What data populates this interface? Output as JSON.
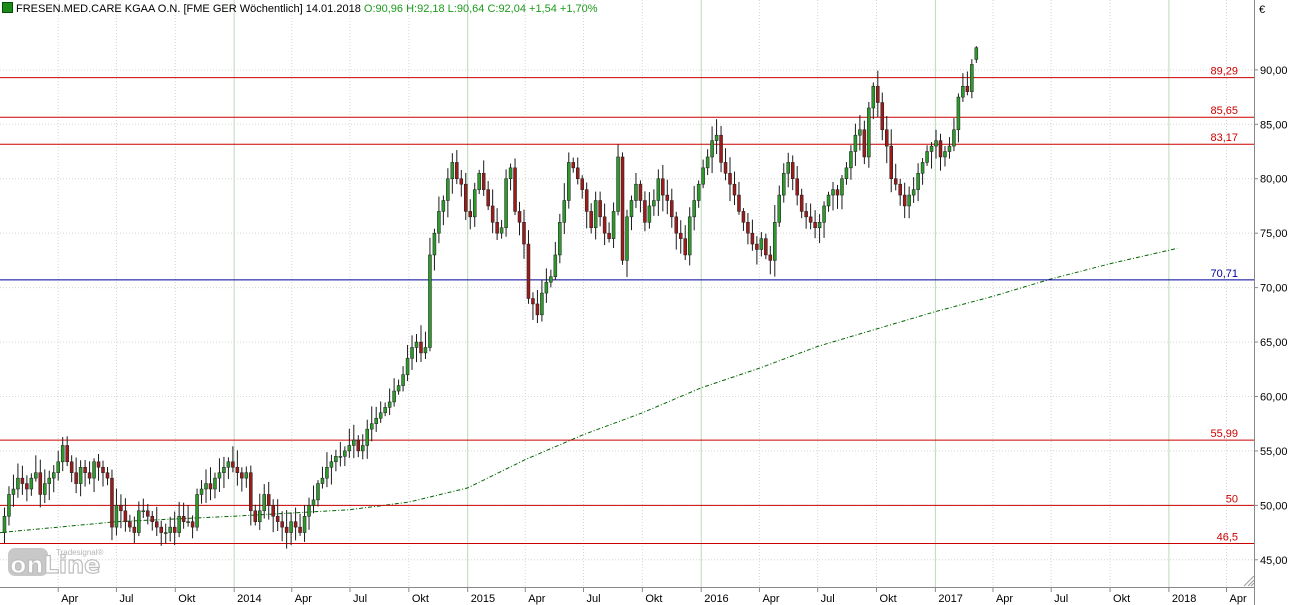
{
  "header": {
    "name": "FRESEN.MED.CARE KGAA O.N.",
    "symbol": "[FME GER",
    "interval": "Wöchentlich]",
    "date": "14.01.2018",
    "ohlc": "O:90,96 H:92,18 L:90,64",
    "close_change": "C:92,04 +1,54 +1,70%"
  },
  "currency": "€",
  "logo": {
    "small": "Tradesignal®",
    "word": "onLine"
  },
  "colors": {
    "up_candle": "#2e9a2e",
    "down_candle": "#9b1c1c",
    "resistance": "#cc0000",
    "support": "#000099",
    "moving_average": "#006600",
    "grid": "#d6d6d6",
    "year_grid": "#bcd9bc"
  },
  "chart_data": {
    "type": "candlestick",
    "title": "FRESEN.MED.CARE KGAA O.N.",
    "interval": "weekly",
    "ylim": [
      42.5,
      95.5
    ],
    "y_ticks": [
      "45,00",
      "50,00",
      "55,00",
      "60,00",
      "65,00",
      "70,00",
      "75,00",
      "80,00",
      "85,00",
      "90,00"
    ],
    "x_range": [
      "2012-12-31",
      "2018-05-14"
    ],
    "x_labels": [
      {
        "date": "2013-04-01",
        "label": "Apr"
      },
      {
        "date": "2013-07-01",
        "label": "Jul"
      },
      {
        "date": "2013-10-01",
        "label": "Okt"
      },
      {
        "date": "2014-01-01",
        "label": "2014"
      },
      {
        "date": "2014-04-01",
        "label": "Apr"
      },
      {
        "date": "2014-07-01",
        "label": "Jul"
      },
      {
        "date": "2014-10-01",
        "label": "Okt"
      },
      {
        "date": "2015-01-01",
        "label": "2015"
      },
      {
        "date": "2015-04-01",
        "label": "Apr"
      },
      {
        "date": "2015-07-01",
        "label": "Jul"
      },
      {
        "date": "2015-10-01",
        "label": "Okt"
      },
      {
        "date": "2016-01-01",
        "label": "2016"
      },
      {
        "date": "2016-04-01",
        "label": "Apr"
      },
      {
        "date": "2016-07-01",
        "label": "Jul"
      },
      {
        "date": "2016-10-01",
        "label": "Okt"
      },
      {
        "date": "2017-01-01",
        "label": "2017"
      },
      {
        "date": "2017-04-01",
        "label": "Apr"
      },
      {
        "date": "2017-07-01",
        "label": "Jul"
      },
      {
        "date": "2017-10-01",
        "label": "Okt"
      },
      {
        "date": "2018-01-01",
        "label": "2018"
      },
      {
        "date": "2018-04-01",
        "label": "Apr"
      }
    ],
    "horizontal_lines": [
      {
        "value": 89.29,
        "label": "89,29",
        "kind": "resistance"
      },
      {
        "value": 85.65,
        "label": "85,65",
        "kind": "resistance"
      },
      {
        "value": 83.17,
        "label": "83,17",
        "kind": "resistance"
      },
      {
        "value": 70.71,
        "label": "70,71",
        "kind": "support"
      },
      {
        "value": 55.99,
        "label": "55,99",
        "kind": "resistance"
      },
      {
        "value": 50,
        "label": "50",
        "kind": "resistance"
      },
      {
        "value": 46.5,
        "label": "46,5",
        "kind": "resistance"
      }
    ],
    "moving_average": [
      {
        "date": "2012-12-31",
        "value": 47.5
      },
      {
        "date": "2013-07-01",
        "value": 48.5
      },
      {
        "date": "2014-01-01",
        "value": 49.0
      },
      {
        "date": "2014-07-01",
        "value": 49.6
      },
      {
        "date": "2014-10-01",
        "value": 50.3
      },
      {
        "date": "2015-01-01",
        "value": 51.6
      },
      {
        "date": "2015-04-01",
        "value": 54.2
      },
      {
        "date": "2015-07-01",
        "value": 56.5
      },
      {
        "date": "2015-10-01",
        "value": 58.5
      },
      {
        "date": "2016-01-01",
        "value": 60.8
      },
      {
        "date": "2016-04-01",
        "value": 62.6
      },
      {
        "date": "2016-07-01",
        "value": 64.6
      },
      {
        "date": "2016-10-01",
        "value": 66.2
      },
      {
        "date": "2017-01-01",
        "value": 67.8
      },
      {
        "date": "2017-04-01",
        "value": 69.2
      },
      {
        "date": "2017-07-01",
        "value": 70.8
      },
      {
        "date": "2017-10-01",
        "value": 72.2
      },
      {
        "date": "2018-01-14",
        "value": 73.6
      }
    ],
    "closes": [
      49.0,
      51.0,
      51.5,
      52.5,
      52.0,
      51.5,
      52.5,
      53.0,
      51.0,
      52.0,
      52.5,
      53.0,
      54.0,
      55.5,
      54.0,
      53.0,
      52.0,
      53.5,
      53.0,
      52.5,
      54.0,
      53.5,
      53.0,
      52.5,
      48.0,
      50.0,
      49.5,
      48.5,
      48.0,
      47.5,
      49.5,
      49.5,
      49.0,
      48.5,
      48.0,
      47.5,
      47.5,
      48.0,
      47.5,
      49.0,
      48.5,
      48.5,
      48.0,
      51.0,
      51.5,
      52.0,
      51.5,
      52.5,
      53.0,
      53.5,
      54.0,
      53.5,
      53.0,
      52.5,
      53.0,
      49.5,
      48.5,
      49.5,
      51.0,
      50.0,
      49.0,
      48.5,
      48.0,
      47.5,
      48.5,
      48.0,
      47.5,
      49.0,
      50.0,
      50.5,
      52.0,
      52.5,
      53.5,
      54.0,
      54.5,
      54.5,
      55.0,
      55.5,
      56.0,
      55.0,
      55.5,
      57.0,
      57.5,
      58.0,
      58.5,
      59.0,
      59.5,
      60.5,
      61.0,
      62.0,
      63.5,
      64.5,
      65.0,
      64.0,
      64.5,
      73.0,
      75.0,
      77.0,
      78.0,
      80.0,
      81.5,
      80.0,
      79.5,
      77.0,
      76.5,
      79.0,
      80.5,
      79.0,
      77.5,
      76.0,
      75.0,
      75.5,
      80.0,
      81.0,
      77.0,
      76.0,
      74.0,
      69.0,
      68.5,
      67.5,
      69.5,
      70.5,
      71.0,
      73.0,
      76.0,
      78.0,
      81.5,
      81.0,
      80.0,
      79.0,
      77.0,
      75.5,
      78.0,
      76.5,
      75.0,
      74.5,
      77.0,
      82.0,
      72.5,
      76.5,
      78.0,
      79.5,
      78.0,
      76.0,
      77.5,
      78.0,
      80.0,
      78.5,
      78.0,
      76.5,
      75.0,
      74.5,
      73.0,
      76.5,
      78.0,
      79.5,
      81.0,
      82.0,
      83.5,
      84.0,
      81.5,
      80.5,
      79.5,
      78.5,
      77.0,
      76.0,
      75.0,
      74.0,
      73.5,
      74.5,
      73.0,
      72.5,
      76.0,
      78.5,
      80.5,
      81.5,
      80.0,
      78.5,
      77.0,
      76.5,
      76.0,
      75.5,
      76.0,
      77.5,
      78.5,
      79.0,
      78.5,
      80.0,
      81.0,
      82.5,
      84.0,
      84.5,
      82.0,
      86.5,
      88.5,
      87.0,
      84.5,
      83.0,
      80.0,
      79.5,
      78.5,
      77.5,
      78.5,
      79.0,
      80.5,
      81.5,
      82.5,
      83.0,
      83.5,
      82.0,
      82.5,
      83.0,
      84.5,
      87.5,
      88.5,
      88.0,
      90.5,
      92.04
    ]
  }
}
